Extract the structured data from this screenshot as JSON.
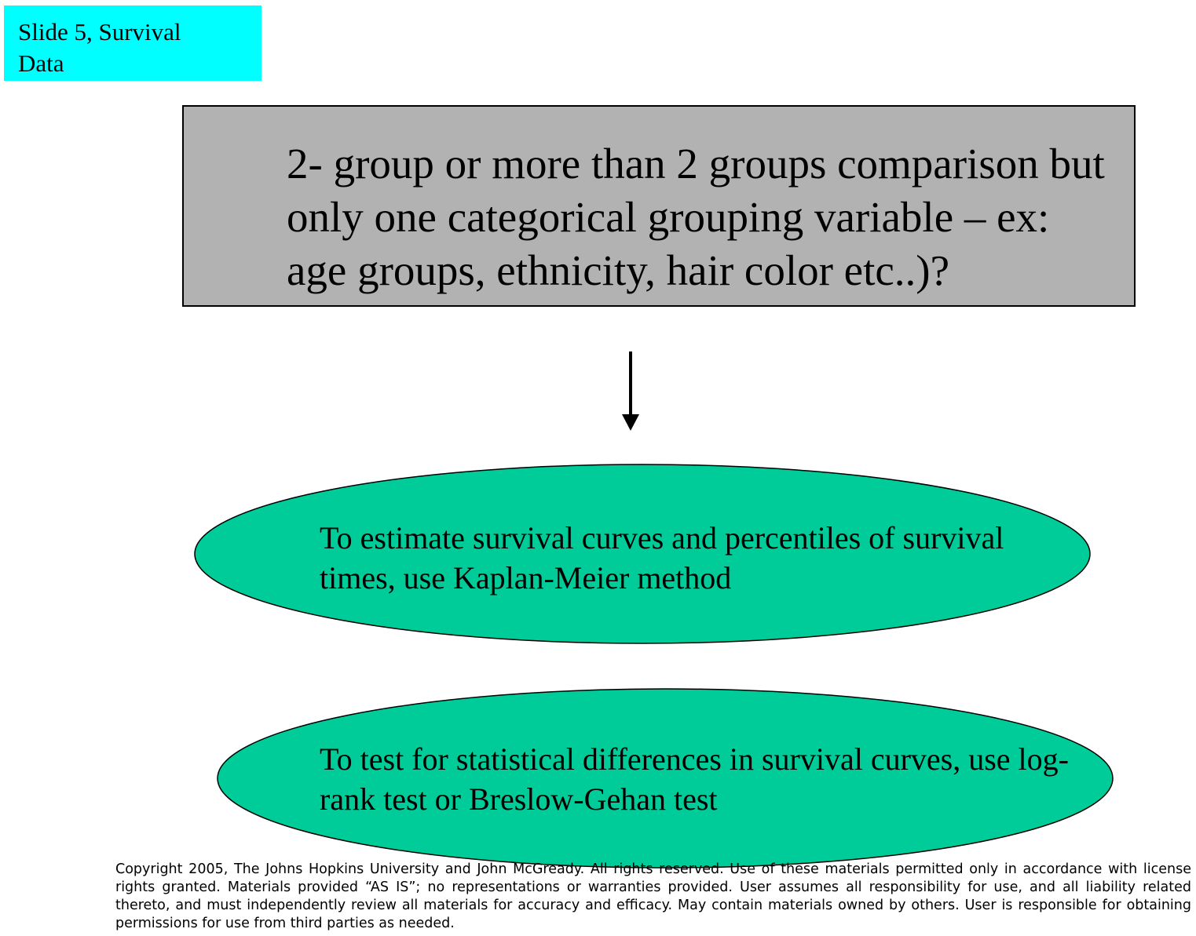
{
  "slide_label": {
    "text": "Slide 5, Survival\nData",
    "background": "#00ffff"
  },
  "question": {
    "text": "2- group or more than 2 groups comparison but only one categorical grouping variable – ex: age groups, ethnicity, hair color etc..)?",
    "background": "#b2b2b2"
  },
  "ellipses": [
    {
      "text": "To estimate survival curves and percentiles of survival times, use Kaplan-Meier method",
      "fill": "#00cc99"
    },
    {
      "text": "To test for statistical differences in survival curves, use log-rank test or Breslow-Gehan test",
      "fill": "#00cc99"
    }
  ],
  "copyright": "Copyright 2005, The Johns Hopkins University and John McGready. All rights reserved. Use of these materials permitted only in accordance with license rights granted. Materials provided “AS IS”; no representations or warranties provided. User assumes all responsibility for use, and all liability related thereto, and must independently review all materials for accuracy and efficacy. May contain materials owned by others. User is responsible for obtaining permissions for use from third parties as needed."
}
